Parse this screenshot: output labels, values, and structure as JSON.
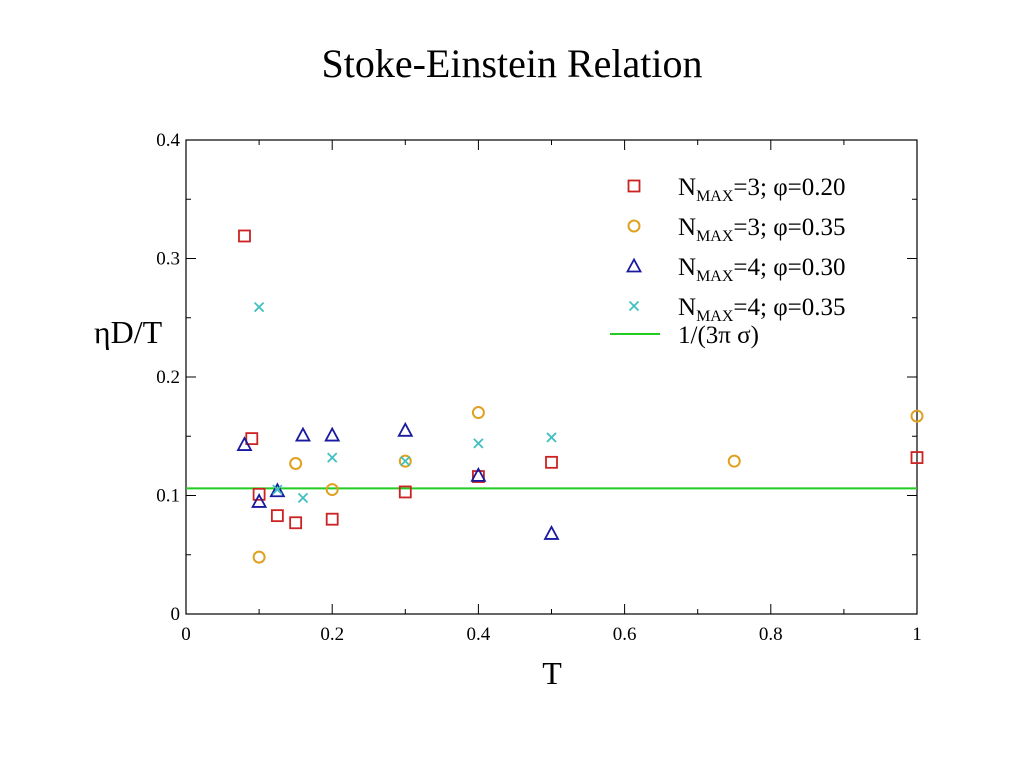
{
  "title": "Stoke-Einstein Relation",
  "chart_data": {
    "type": "scatter",
    "title": "Stoke-Einstein Relation",
    "xlabel": "T",
    "ylabel": "ηD/T",
    "xlim": [
      0,
      1
    ],
    "ylim": [
      0,
      0.4
    ],
    "xticks": [
      0,
      0.2,
      0.4,
      0.6,
      0.8,
      1
    ],
    "xtick_labels": [
      "0",
      "0.2",
      "0.4",
      "0.6",
      "0.8",
      "1"
    ],
    "yticks": [
      0,
      0.1,
      0.2,
      0.3,
      0.4
    ],
    "ytick_labels": [
      "0",
      "0.1",
      "0.2",
      "0.3",
      "0.4"
    ],
    "grid": false,
    "legend_position": "top-right",
    "series": [
      {
        "name": "N_MAX=3; φ=0.20",
        "legend_main": "N",
        "legend_sub": "MAX",
        "legend_rest": "=3; φ=0.20",
        "marker": "square",
        "color": "#cc2222",
        "x": [
          0.08,
          0.09,
          0.1,
          0.125,
          0.15,
          0.2,
          0.3,
          0.4,
          0.5,
          1.0
        ],
        "y": [
          0.319,
          0.148,
          0.101,
          0.083,
          0.077,
          0.08,
          0.103,
          0.116,
          0.128,
          0.132
        ]
      },
      {
        "name": "N_MAX=3; φ=0.35",
        "legend_main": "N",
        "legend_sub": "MAX",
        "legend_rest": "=3; φ=0.35",
        "marker": "circle",
        "color": "#e0a020",
        "x": [
          0.1,
          0.15,
          0.2,
          0.3,
          0.4,
          0.75,
          1.0
        ],
        "y": [
          0.048,
          0.127,
          0.105,
          0.129,
          0.17,
          0.129,
          0.167
        ]
      },
      {
        "name": "N_MAX=4; φ=0.30",
        "legend_main": "N",
        "legend_sub": "MAX",
        "legend_rest": "=4; φ=0.30",
        "marker": "triangle",
        "color": "#1a1aa0",
        "x": [
          0.08,
          0.1,
          0.125,
          0.16,
          0.2,
          0.3,
          0.4,
          0.5
        ],
        "y": [
          0.143,
          0.095,
          0.104,
          0.151,
          0.151,
          0.155,
          0.117,
          0.068
        ]
      },
      {
        "name": "N_MAX=4; φ=0.35",
        "legend_main": "N",
        "legend_sub": "MAX",
        "legend_rest": "=4; φ=0.35",
        "marker": "x",
        "color": "#40c0c0",
        "x": [
          0.1,
          0.125,
          0.16,
          0.2,
          0.3,
          0.4,
          0.5
        ],
        "y": [
          0.259,
          0.105,
          0.098,
          0.132,
          0.129,
          0.144,
          0.149
        ]
      }
    ],
    "reference_line": {
      "name": "1/(3π σ)",
      "legend_label": "1/(3π σ)",
      "y": 0.106,
      "color": "#22cc22"
    }
  }
}
